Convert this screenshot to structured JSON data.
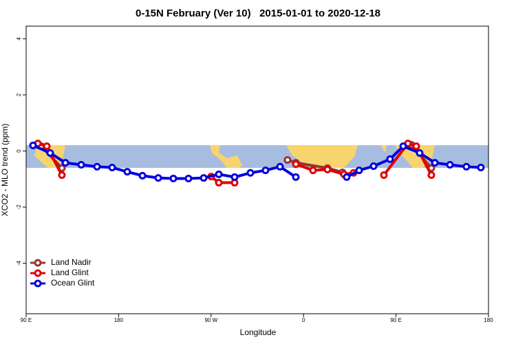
{
  "chart_data": {
    "type": "line",
    "title": "0-15N February (Ver 10)   2015-01-01 to 2020-12-18",
    "xlabel": "Longitude",
    "ylabel": "XCO2 - MLO trend (ppm)",
    "xlim": [
      90,
      540
    ],
    "ylim": [
      -5.8,
      4.45
    ],
    "xticks": [
      {
        "value": 90,
        "label": "90 E"
      },
      180,
      {
        "value": 270,
        "label": "90 W"
      },
      {
        "value": 360,
        "label": "0"
      },
      {
        "value": 450,
        "label": "90 E"
      },
      {
        "value": 540,
        "label": "180"
      }
    ],
    "yticks": [
      -4,
      -2,
      0,
      2,
      4
    ],
    "legend": "bottomleft",
    "series": [
      {
        "name": "Land Nadir",
        "color": "#993333",
        "x": [
          104.7,
          124.8,
          null,
          344.4,
          352.5,
          383.3,
          397.9,
          null,
          465,
          484.4
        ],
        "values": [
          0.17,
          -0.61,
          null,
          -0.32,
          -0.42,
          -0.61,
          -0.76,
          null,
          0.22,
          -0.61
        ]
      },
      {
        "name": "Land Glint",
        "color": "#e00000",
        "x": [
          101.4,
          110.1,
          124.8,
          null,
          270.1,
          277.5,
          292.9,
          null,
          352.5,
          369.2,
          383.3,
          399.3,
          408.7,
          null,
          438.2,
          461.6,
          469.7,
          484.4
        ],
        "values": [
          0.27,
          0.17,
          -0.86,
          null,
          -0.91,
          -1.13,
          -1.13,
          null,
          -0.47,
          -0.69,
          -0.66,
          -0.83,
          -0.78,
          null,
          -0.86,
          0.27,
          0.17,
          -0.86
        ]
      },
      {
        "name": "Ocean Glint",
        "color": "#0000e0",
        "x": [
          96.7,
          113.4,
          128.2,
          143.6,
          159,
          173.7,
          188.4,
          203.2,
          218.6,
          233.3,
          248,
          262.8,
          277.5,
          292.9,
          308.3,
          323,
          337.1,
          352.5,
          null,
          402,
          414.1,
          428.2,
          444.2,
          457,
          473,
          487.8,
          502.5,
          518.5,
          532.6
        ],
        "values": [
          0.2,
          -0.07,
          -0.42,
          -0.49,
          -0.56,
          -0.59,
          -0.74,
          -0.88,
          -0.96,
          -0.98,
          -0.98,
          -0.96,
          -0.83,
          -0.93,
          -0.78,
          -0.69,
          -0.56,
          -0.93,
          null,
          -0.93,
          -0.69,
          -0.54,
          -0.29,
          0.17,
          -0.07,
          -0.42,
          -0.49,
          -0.56,
          -0.59
        ]
      }
    ]
  }
}
